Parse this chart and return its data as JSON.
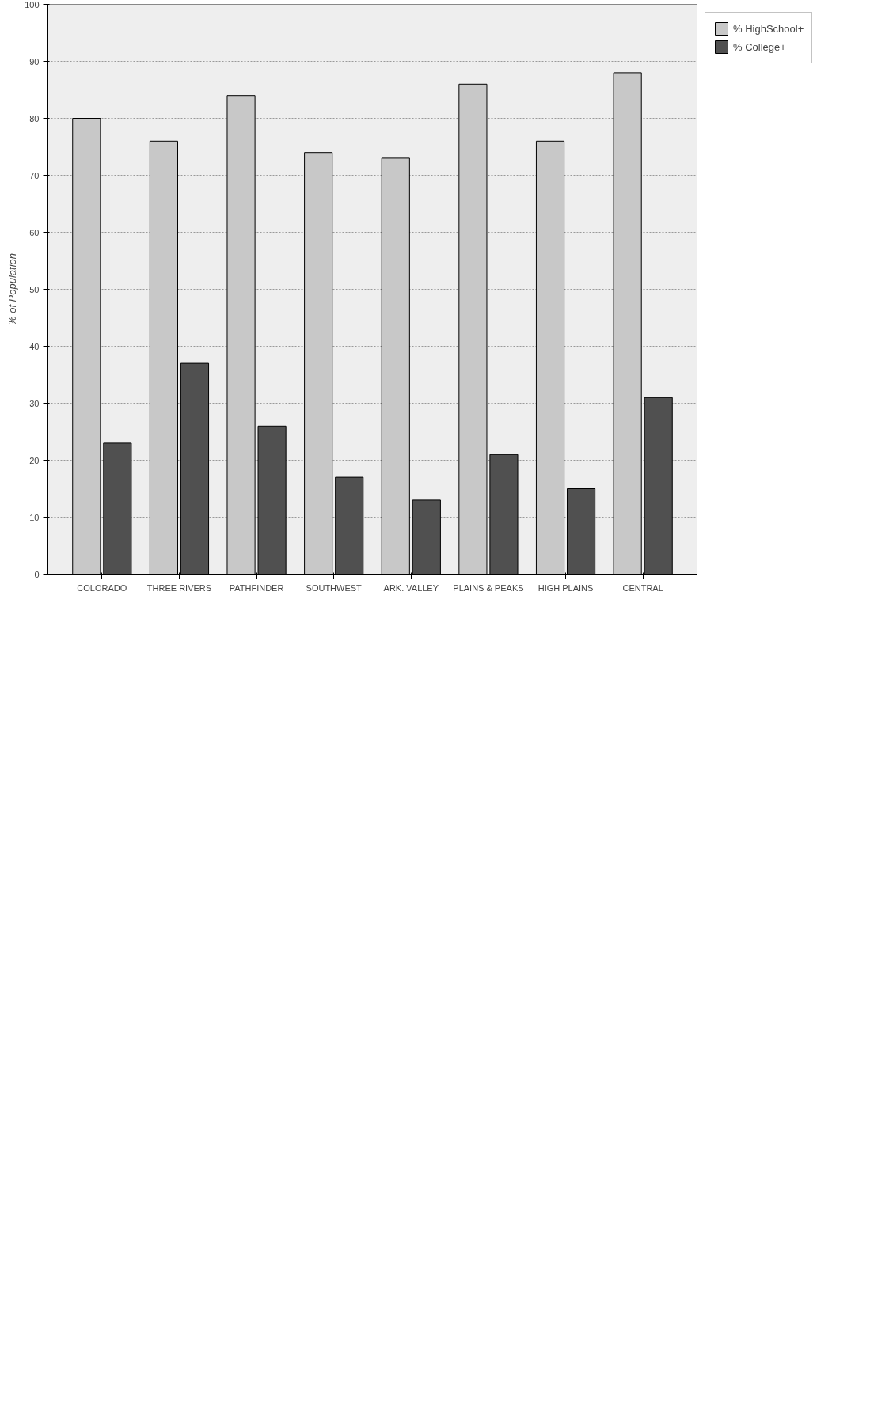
{
  "chart_data": {
    "type": "bar",
    "ylabel": "% of Population",
    "categories": [
      "COLORADO",
      "THREE RIVERS",
      "PATHFINDER",
      "SOUTHWEST",
      "ARK. VALLEY",
      "PLAINS & PEAKS",
      "HIGH PLAINS",
      "CENTRAL"
    ],
    "series": [
      {
        "name": "% HighSchool+",
        "color": "#c8c8c8",
        "values": [
          80,
          76,
          84,
          74,
          73,
          86,
          76,
          88
        ]
      },
      {
        "name": "% College+",
        "color": "#505050",
        "values": [
          23,
          37,
          26,
          17,
          13,
          21,
          15,
          31
        ]
      }
    ],
    "ylim": [
      0,
      100
    ],
    "yticks": [
      0,
      10,
      20,
      30,
      40,
      50,
      60,
      70,
      80,
      90,
      100
    ],
    "grid": "y",
    "legend": "right"
  }
}
